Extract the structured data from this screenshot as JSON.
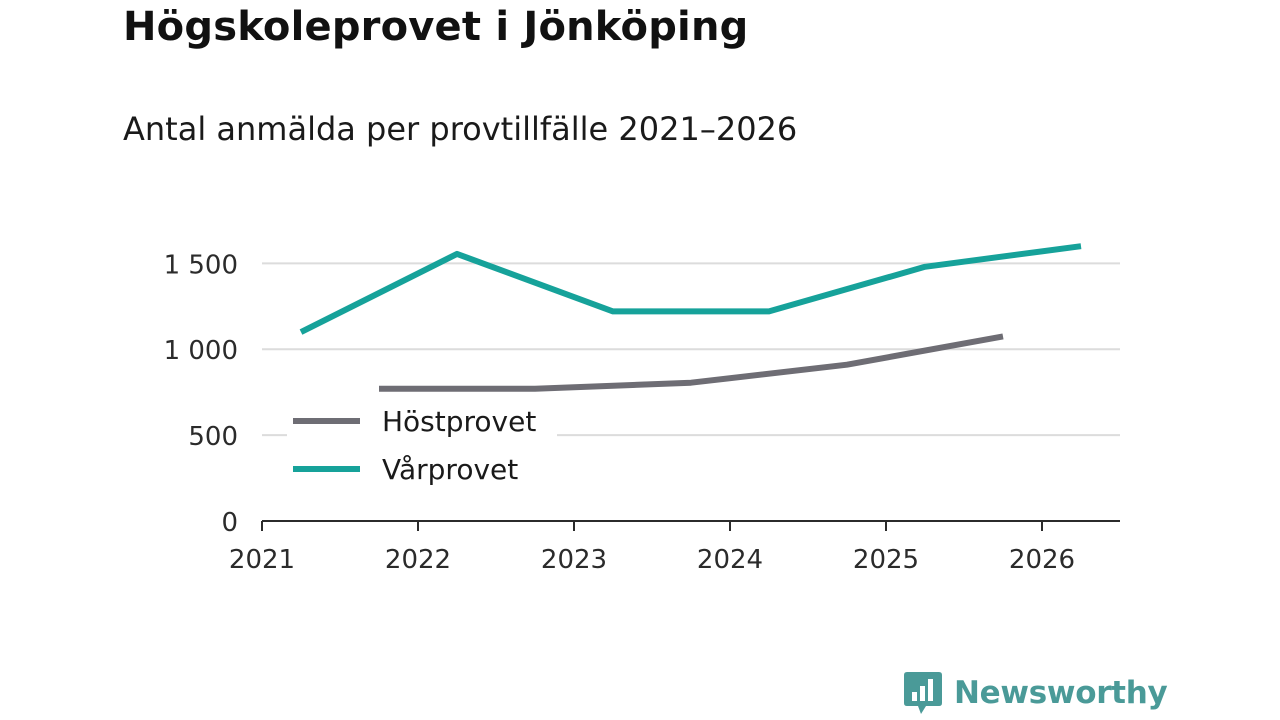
{
  "title": "Högskoleprovet i Jönköping",
  "subtitle": "Antal anmälda per provtillfälle 2021–2026",
  "brand": {
    "name": "Newsworthy",
    "color": "#4a9a98",
    "icon": "chart-bubble-icon"
  },
  "chart_data": {
    "type": "line",
    "title": "Högskoleprovet i Jönköping",
    "subtitle": "Antal anmälda per provtillfälle 2021–2026",
    "xlabel": "",
    "ylabel": "",
    "xlim": [
      2021,
      2026.5
    ],
    "ylim": [
      0,
      1700
    ],
    "x_ticks": [
      2021,
      2022,
      2023,
      2024,
      2025,
      2026
    ],
    "x_tick_labels": [
      "2021",
      "2022",
      "2023",
      "2024",
      "2025",
      "2026"
    ],
    "y_ticks": [
      0,
      500,
      1000,
      1500
    ],
    "y_tick_labels": [
      "0",
      "500",
      "1 000",
      "1 500"
    ],
    "grid": true,
    "legend_position": "left",
    "series": [
      {
        "name": "Höstprovet",
        "color": "#6e6d74",
        "x": [
          2021.75,
          2022.75,
          2023.75,
          2024.75,
          2025.75
        ],
        "values": [
          770,
          770,
          805,
          910,
          1075
        ]
      },
      {
        "name": "Vårprovet",
        "color": "#16a29a",
        "x": [
          2021.25,
          2022.25,
          2023.25,
          2024.25,
          2025.25,
          2026.25
        ],
        "values": [
          1100,
          1555,
          1220,
          1220,
          1480,
          1600
        ]
      }
    ]
  }
}
